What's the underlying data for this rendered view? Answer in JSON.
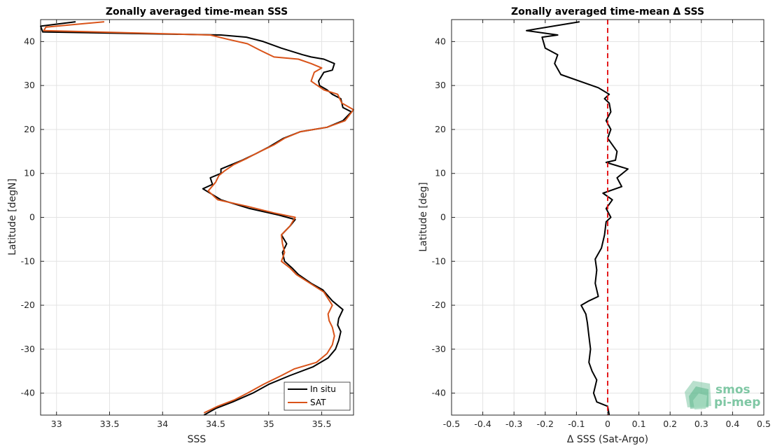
{
  "chart_data": [
    {
      "type": "line",
      "title": "Zonally averaged time-mean SSS",
      "xlabel": "SSS",
      "ylabel": "Latitude [degN]",
      "xlim": [
        32.85,
        35.8
      ],
      "ylim": [
        -45,
        45
      ],
      "xticks": [
        33,
        33.5,
        34,
        34.5,
        35,
        35.5
      ],
      "yticks": [
        -40,
        -30,
        -20,
        -10,
        0,
        10,
        20,
        30,
        40
      ],
      "grid": true,
      "legend_position": "bottom-right",
      "series": [
        {
          "name": "In situ",
          "color": "#000000",
          "points": [
            [
              34.39,
              -45
            ],
            [
              34.5,
              -43.5
            ],
            [
              34.66,
              -42
            ],
            [
              34.85,
              -40
            ],
            [
              35.0,
              -38
            ],
            [
              35.2,
              -36
            ],
            [
              35.42,
              -34
            ],
            [
              35.56,
              -32
            ],
            [
              35.63,
              -30
            ],
            [
              35.66,
              -28
            ],
            [
              35.68,
              -26
            ],
            [
              35.65,
              -24.5
            ],
            [
              35.66,
              -23
            ],
            [
              35.7,
              -21
            ],
            [
              35.6,
              -19
            ],
            [
              35.51,
              -16.5
            ],
            [
              35.4,
              -15
            ],
            [
              35.28,
              -13
            ],
            [
              35.22,
              -11.5
            ],
            [
              35.15,
              -10
            ],
            [
              35.13,
              -8
            ],
            [
              35.17,
              -6
            ],
            [
              35.12,
              -4
            ],
            [
              35.2,
              -2
            ],
            [
              35.25,
              -0.5
            ],
            [
              35.1,
              0.5
            ],
            [
              34.82,
              2
            ],
            [
              34.55,
              4
            ],
            [
              34.38,
              6.5
            ],
            [
              34.47,
              7.5
            ],
            [
              34.45,
              9
            ],
            [
              34.55,
              10
            ],
            [
              34.55,
              11
            ],
            [
              34.65,
              12
            ],
            [
              34.75,
              13
            ],
            [
              34.88,
              14.5
            ],
            [
              35.0,
              16
            ],
            [
              35.14,
              18
            ],
            [
              35.3,
              19.5
            ],
            [
              35.55,
              20.5
            ],
            [
              35.7,
              22
            ],
            [
              35.78,
              24
            ],
            [
              35.7,
              25
            ],
            [
              35.68,
              27
            ],
            [
              35.6,
              28
            ],
            [
              35.55,
              29
            ],
            [
              35.48,
              30
            ],
            [
              35.47,
              31
            ],
            [
              35.52,
              33
            ],
            [
              35.6,
              33.5
            ],
            [
              35.62,
              35
            ],
            [
              35.52,
              36
            ],
            [
              35.4,
              36.5
            ],
            [
              35.32,
              37
            ],
            [
              35.12,
              38.5
            ],
            [
              34.95,
              40
            ],
            [
              34.79,
              41
            ],
            [
              34.55,
              41.5
            ],
            [
              32.87,
              42.2
            ],
            [
              32.85,
              43.5
            ],
            [
              33.18,
              44.5
            ]
          ]
        },
        {
          "name": "SAT",
          "color": "#d95319",
          "points": [
            [
              34.39,
              -44.5
            ],
            [
              34.52,
              -43
            ],
            [
              34.68,
              -41.5
            ],
            [
              34.8,
              -40
            ],
            [
              34.95,
              -38
            ],
            [
              35.12,
              -36
            ],
            [
              35.24,
              -34.5
            ],
            [
              35.45,
              -33
            ],
            [
              35.55,
              -31
            ],
            [
              35.6,
              -29
            ],
            [
              35.62,
              -27
            ],
            [
              35.6,
              -25
            ],
            [
              35.57,
              -23.5
            ],
            [
              35.56,
              -22
            ],
            [
              35.6,
              -20
            ],
            [
              35.52,
              -17
            ],
            [
              35.39,
              -15
            ],
            [
              35.26,
              -13
            ],
            [
              35.2,
              -11.5
            ],
            [
              35.12,
              -10
            ],
            [
              35.15,
              -8
            ],
            [
              35.13,
              -6
            ],
            [
              35.12,
              -4
            ],
            [
              35.2,
              -2
            ],
            [
              35.25,
              0
            ],
            [
              35.05,
              1
            ],
            [
              34.8,
              2.5
            ],
            [
              34.52,
              4
            ],
            [
              34.43,
              6
            ],
            [
              34.5,
              8
            ],
            [
              34.53,
              9.5
            ],
            [
              34.58,
              10.5
            ],
            [
              34.67,
              12
            ],
            [
              34.8,
              13.5
            ],
            [
              34.92,
              15
            ],
            [
              35.05,
              16.5
            ],
            [
              35.15,
              18
            ],
            [
              35.3,
              19.5
            ],
            [
              35.55,
              20.5
            ],
            [
              35.72,
              22
            ],
            [
              35.8,
              24.5
            ],
            [
              35.69,
              26
            ],
            [
              35.65,
              28
            ],
            [
              35.52,
              29
            ],
            [
              35.46,
              30
            ],
            [
              35.4,
              31
            ],
            [
              35.43,
              33
            ],
            [
              35.5,
              34
            ],
            [
              35.4,
              35
            ],
            [
              35.28,
              36
            ],
            [
              35.05,
              36.5
            ],
            [
              34.92,
              38
            ],
            [
              34.8,
              39.5
            ],
            [
              34.62,
              40.5
            ],
            [
              34.45,
              41.5
            ],
            [
              32.88,
              42.5
            ],
            [
              32.9,
              43.3
            ],
            [
              33.45,
              44.5
            ]
          ]
        }
      ]
    },
    {
      "type": "line",
      "title": "Zonally averaged time-mean Δ SSS",
      "xlabel": "Δ SSS (Sat-Argo)",
      "ylabel": "Latitude [deg]",
      "xlim": [
        -0.5,
        0.5
      ],
      "ylim": [
        -45,
        45
      ],
      "xticks": [
        -0.5,
        -0.4,
        -0.3,
        -0.2,
        -0.1,
        0,
        0.1,
        0.2,
        0.3,
        0.4,
        0.5
      ],
      "yticks": [
        -40,
        -30,
        -20,
        -10,
        0,
        10,
        20,
        30,
        40
      ],
      "grid": true,
      "reference_line": {
        "x": 0,
        "color": "#e41a1c",
        "style": "dashed"
      },
      "series": [
        {
          "color": "#000000",
          "points": [
            [
              0.005,
              -45
            ],
            [
              0.0,
              -43
            ],
            [
              -0.035,
              -42
            ],
            [
              -0.045,
              -40
            ],
            [
              -0.035,
              -37
            ],
            [
              -0.05,
              -35
            ],
            [
              -0.06,
              -33
            ],
            [
              -0.055,
              -30
            ],
            [
              -0.06,
              -27
            ],
            [
              -0.065,
              -24
            ],
            [
              -0.07,
              -22
            ],
            [
              -0.085,
              -20
            ],
            [
              -0.06,
              -19
            ],
            [
              -0.03,
              -18
            ],
            [
              -0.04,
              -15
            ],
            [
              -0.035,
              -12
            ],
            [
              -0.04,
              -9.5
            ],
            [
              -0.02,
              -7
            ],
            [
              -0.01,
              -4
            ],
            [
              -0.005,
              -1
            ],
            [
              0.01,
              0
            ],
            [
              -0.005,
              2
            ],
            [
              0.015,
              4
            ],
            [
              -0.015,
              5.5
            ],
            [
              0.045,
              7
            ],
            [
              0.03,
              9
            ],
            [
              0.065,
              11
            ],
            [
              -0.005,
              12.5
            ],
            [
              0.025,
              13
            ],
            [
              0.03,
              15
            ],
            [
              0.01,
              17
            ],
            [
              0.0,
              18
            ],
            [
              0.01,
              20
            ],
            [
              -0.005,
              22
            ],
            [
              0.01,
              24
            ],
            [
              0.005,
              26
            ],
            [
              -0.01,
              27
            ],
            [
              0.005,
              28
            ],
            [
              -0.03,
              29.5
            ],
            [
              -0.15,
              32.5
            ],
            [
              -0.17,
              35
            ],
            [
              -0.16,
              37
            ],
            [
              -0.2,
              38.5
            ],
            [
              -0.21,
              41
            ],
            [
              -0.16,
              41.5
            ],
            [
              -0.26,
              42.5
            ],
            [
              -0.09,
              44.5
            ]
          ]
        }
      ]
    }
  ],
  "logo": {
    "line1": "smos",
    "line2": "pi-mep",
    "color": "#7fc7a4"
  }
}
